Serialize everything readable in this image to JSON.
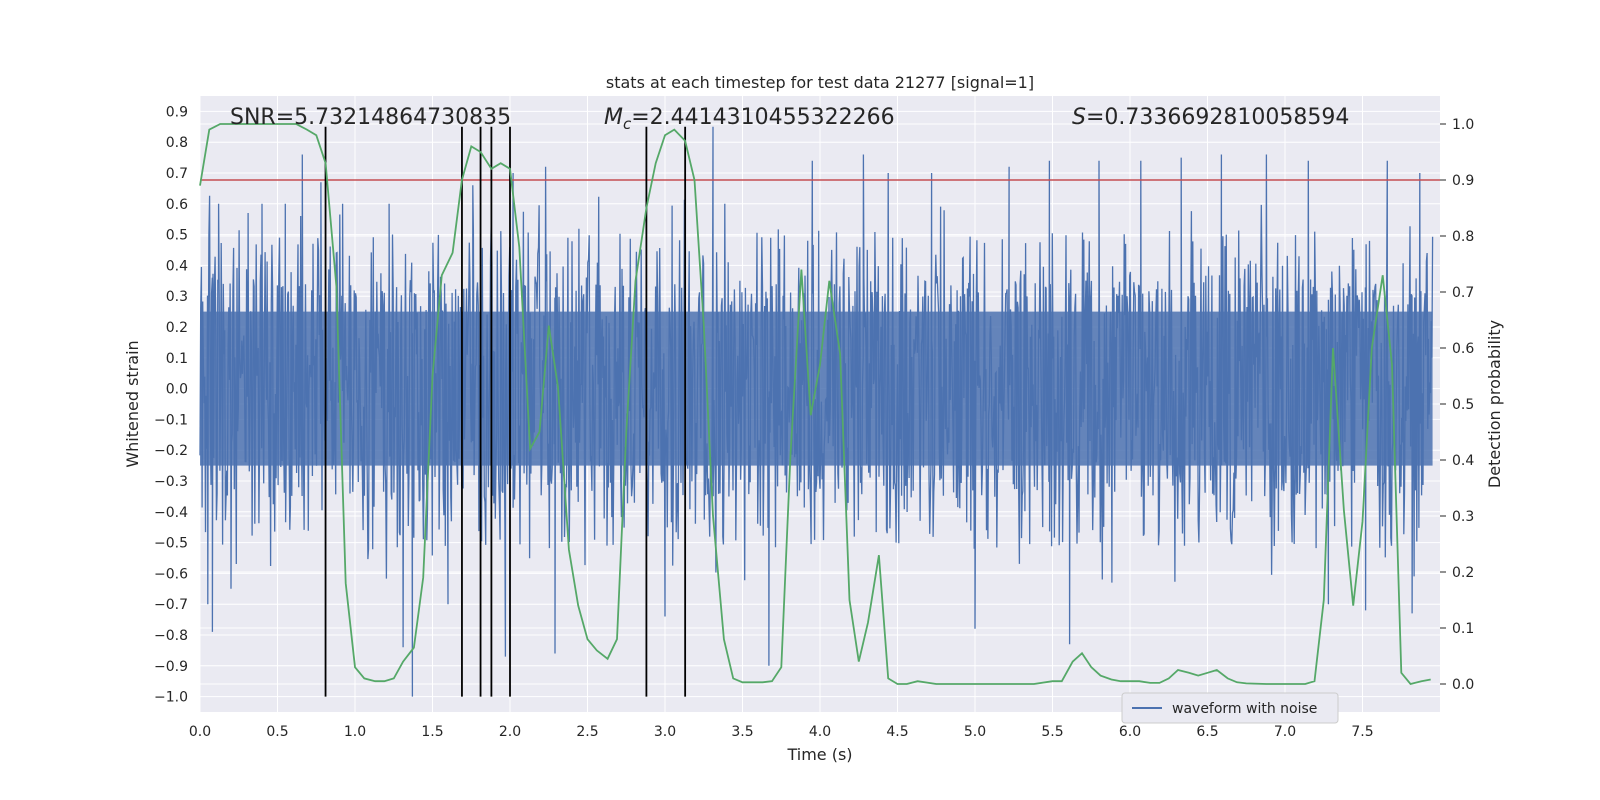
{
  "chart_data": {
    "type": "line",
    "title": "stats at each timestep for test data 21277 [signal=1]",
    "xlabel": "Time (s)",
    "ylabel_left": "Whitened strain",
    "ylabel_right": "Detection probability",
    "xlim": [
      0.0,
      8.0
    ],
    "ylim_left": [
      -1.05,
      0.95
    ],
    "ylim_right": [
      -0.05,
      1.05
    ],
    "xticks": [
      "0.0",
      "0.5",
      "1.0",
      "1.5",
      "2.0",
      "2.5",
      "3.0",
      "3.5",
      "4.0",
      "4.5",
      "5.0",
      "5.5",
      "6.0",
      "6.5",
      "7.0",
      "7.5"
    ],
    "yticks_left": [
      "0.9",
      "0.8",
      "0.7",
      "0.6",
      "0.5",
      "0.4",
      "0.3",
      "0.2",
      "0.1",
      "0.0",
      "−0.1",
      "−0.2",
      "−0.3",
      "−0.4",
      "−0.5",
      "−0.6",
      "−0.7",
      "−0.8",
      "−0.9",
      "−1.0"
    ],
    "yticks_right": [
      "1.0",
      "0.9",
      "0.8",
      "0.7",
      "0.6",
      "0.5",
      "0.4",
      "0.3",
      "0.2",
      "0.1",
      "0.0"
    ],
    "annotations": {
      "snr": "SNR=5.73214864730835",
      "mc_symbol": "M",
      "mc_sub": "c",
      "mc_value": "=2.4414310455322266",
      "s_symbol": "S",
      "s_value": "=0.7336692810058594"
    },
    "threshold": {
      "value": 0.9,
      "axis": "right",
      "color": "#c44e52"
    },
    "event_lines_x": [
      0.81,
      1.69,
      1.81,
      1.88,
      2.0,
      2.88,
      3.13
    ],
    "event_lines_range_left": [
      -1.0,
      0.85
    ],
    "series": [
      {
        "name": "waveform with noise",
        "axis": "left",
        "color": "#4c72b0",
        "kind": "noise",
        "typical_range": [
          -0.35,
          0.35
        ],
        "spike_peaks": [
          {
            "x": 0.05,
            "y": -0.7
          },
          {
            "x": 0.08,
            "y": -0.79
          },
          {
            "x": 0.12,
            "y": 0.6
          },
          {
            "x": 0.2,
            "y": -0.65
          },
          {
            "x": 0.31,
            "y": 0.57
          },
          {
            "x": 0.4,
            "y": 0.6
          },
          {
            "x": 0.55,
            "y": 0.6
          },
          {
            "x": 0.66,
            "y": 0.76
          },
          {
            "x": 0.78,
            "y": 0.67
          },
          {
            "x": 0.92,
            "y": 0.6
          },
          {
            "x": 1.22,
            "y": 0.6
          },
          {
            "x": 1.31,
            "y": -0.84
          },
          {
            "x": 1.37,
            "y": -1.0
          },
          {
            "x": 1.6,
            "y": -0.7
          },
          {
            "x": 1.76,
            "y": 0.66
          },
          {
            "x": 1.97,
            "y": -0.87
          },
          {
            "x": 2.02,
            "y": 0.7
          },
          {
            "x": 2.23,
            "y": 0.72
          },
          {
            "x": 2.29,
            "y": -0.86
          },
          {
            "x": 3.0,
            "y": -0.74
          },
          {
            "x": 3.31,
            "y": 0.85
          },
          {
            "x": 3.67,
            "y": -0.9
          },
          {
            "x": 3.95,
            "y": 0.74
          },
          {
            "x": 4.28,
            "y": 0.76
          },
          {
            "x": 4.44,
            "y": 0.7
          },
          {
            "x": 4.72,
            "y": 0.7
          },
          {
            "x": 5.0,
            "y": -0.78
          },
          {
            "x": 5.22,
            "y": 0.72
          },
          {
            "x": 5.48,
            "y": 0.74
          },
          {
            "x": 5.61,
            "y": -0.83
          },
          {
            "x": 5.8,
            "y": 0.74
          },
          {
            "x": 6.07,
            "y": 0.74
          },
          {
            "x": 6.33,
            "y": 0.75
          },
          {
            "x": 6.59,
            "y": 0.76
          },
          {
            "x": 6.88,
            "y": 0.76
          },
          {
            "x": 7.15,
            "y": 0.74
          },
          {
            "x": 7.28,
            "y": -0.7
          },
          {
            "x": 7.52,
            "y": -0.72
          },
          {
            "x": 7.66,
            "y": 0.74
          },
          {
            "x": 7.82,
            "y": -0.73
          },
          {
            "x": 7.87,
            "y": 0.7
          }
        ]
      },
      {
        "name": "detection probability",
        "axis": "right",
        "color": "#55a868",
        "x": [
          0.0,
          0.06,
          0.13,
          0.25,
          0.38,
          0.5,
          0.62,
          0.69,
          0.75,
          0.81,
          0.88,
          0.94,
          1.0,
          1.06,
          1.13,
          1.19,
          1.25,
          1.31,
          1.38,
          1.44,
          1.5,
          1.56,
          1.63,
          1.69,
          1.75,
          1.81,
          1.88,
          1.94,
          2.0,
          2.06,
          2.13,
          2.19,
          2.25,
          2.31,
          2.38,
          2.44,
          2.5,
          2.56,
          2.63,
          2.69,
          2.75,
          2.81,
          2.88,
          2.94,
          3.0,
          3.06,
          3.13,
          3.19,
          3.25,
          3.31,
          3.38,
          3.44,
          3.5,
          3.56,
          3.63,
          3.69,
          3.75,
          3.81,
          3.88,
          3.94,
          4.0,
          4.06,
          4.13,
          4.19,
          4.25,
          4.31,
          4.38,
          4.44,
          4.5,
          4.56,
          4.63,
          4.75,
          4.88,
          5.0,
          5.13,
          5.25,
          5.38,
          5.5,
          5.56,
          5.63,
          5.69,
          5.75,
          5.81,
          5.88,
          5.94,
          6.06,
          6.13,
          6.19,
          6.25,
          6.31,
          6.38,
          6.44,
          6.5,
          6.56,
          6.63,
          6.69,
          6.75,
          6.88,
          7.0,
          7.13,
          7.19,
          7.25,
          7.31,
          7.38,
          7.44,
          7.5,
          7.56,
          7.63,
          7.69,
          7.75,
          7.81,
          7.88,
          7.94
        ],
        "y": [
          0.89,
          0.99,
          1.0,
          1.0,
          1.0,
          1.0,
          1.0,
          0.99,
          0.98,
          0.93,
          0.71,
          0.18,
          0.03,
          0.01,
          0.005,
          0.005,
          0.01,
          0.04,
          0.065,
          0.19,
          0.55,
          0.73,
          0.77,
          0.9,
          0.96,
          0.95,
          0.92,
          0.93,
          0.92,
          0.78,
          0.42,
          0.45,
          0.64,
          0.53,
          0.24,
          0.14,
          0.08,
          0.06,
          0.045,
          0.08,
          0.45,
          0.72,
          0.85,
          0.93,
          0.98,
          0.99,
          0.97,
          0.9,
          0.64,
          0.3,
          0.08,
          0.01,
          0.003,
          0.003,
          0.003,
          0.005,
          0.03,
          0.41,
          0.74,
          0.48,
          0.57,
          0.72,
          0.59,
          0.15,
          0.04,
          0.11,
          0.23,
          0.01,
          0.0,
          0.0,
          0.005,
          0.0,
          0.0,
          0.0,
          0.0,
          0.0,
          0.0,
          0.005,
          0.005,
          0.04,
          0.055,
          0.03,
          0.015,
          0.008,
          0.005,
          0.005,
          0.002,
          0.002,
          0.01,
          0.025,
          0.02,
          0.015,
          0.02,
          0.025,
          0.01,
          0.003,
          0.001,
          0.0,
          0.0,
          0.0,
          0.005,
          0.15,
          0.6,
          0.31,
          0.14,
          0.29,
          0.6,
          0.73,
          0.57,
          0.02,
          0.0,
          0.005,
          0.008
        ]
      }
    ],
    "legend": {
      "entries": [
        "waveform with noise"
      ],
      "position": "lower-right"
    }
  }
}
